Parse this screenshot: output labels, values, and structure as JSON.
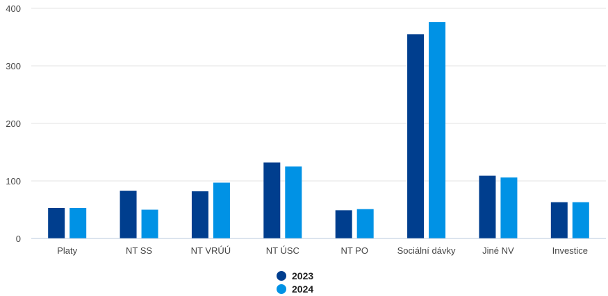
{
  "chart_data": {
    "type": "bar",
    "categories": [
      "Platy",
      "NT SS",
      "NT VRÚÚ",
      "NT ÚSC",
      "NT PO",
      "Sociální dávky",
      "Jiné NV",
      "Investice"
    ],
    "series": [
      {
        "name": "2023",
        "color": "#003e8e",
        "values": [
          53,
          83,
          82,
          132,
          49,
          355,
          109,
          63
        ]
      },
      {
        "name": "2024",
        "color": "#0092e5",
        "values": [
          53,
          50,
          97,
          125,
          51,
          376,
          106,
          63
        ]
      }
    ],
    "yticks": [
      "0",
      "100",
      "200",
      "300",
      "400"
    ],
    "ylim": [
      0,
      400
    ],
    "grid": true,
    "legend_position": "bottom-center"
  }
}
